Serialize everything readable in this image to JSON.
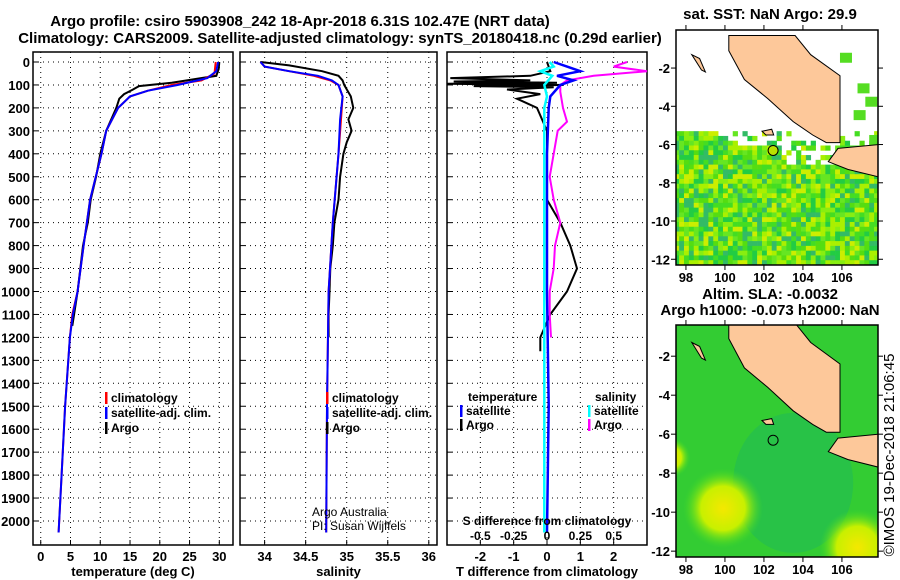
{
  "title": {
    "line1": "Argo profile: csiro 5903908_242 18-Apr-2018 6.31S 102.47E (NRT data)",
    "line2": "Climatology: CARS2009. Satellite-adjusted climatology: synTS_20180418.nc (0.29d earlier)"
  },
  "colors": {
    "climatology": "#ff0000",
    "satellite": "#0000ff",
    "argo": "#000000",
    "sal_sat": "#00ffff",
    "sal_argo": "#ff00ff",
    "land": "#fdc89a"
  },
  "chart_data": [
    {
      "type": "line",
      "id": "temperature",
      "xlabel": "temperature (deg C)",
      "xlim": [
        -1.3,
        32.3
      ],
      "ylim": [
        2100,
        0
      ],
      "xticks": [
        0,
        5,
        10,
        15,
        20,
        25,
        30
      ],
      "yticks": [
        0,
        100,
        200,
        300,
        400,
        500,
        600,
        700,
        800,
        900,
        1000,
        1100,
        1200,
        1300,
        1400,
        1500,
        1600,
        1700,
        1800,
        1900,
        2000
      ],
      "legend": [
        "climatology",
        "satellite-adj. clim.",
        "Argo"
      ],
      "series": [
        {
          "name": "climatology",
          "depth": [
            0,
            50,
            80,
            100,
            125,
            150,
            200,
            300,
            400,
            600,
            800,
            1000,
            1100,
            1200,
            1500,
            1800,
            2050
          ],
          "values": [
            29.4,
            29.2,
            27,
            22,
            18,
            15,
            13,
            11,
            10.2,
            8.3,
            7.2,
            6.2,
            5.3,
            4.9,
            4.1,
            3.5,
            3.0
          ]
        },
        {
          "name": "satellite-adj. clim.",
          "depth": [
            0,
            40,
            70,
            100,
            125,
            150,
            200,
            300,
            400,
            600,
            800,
            1000,
            1100,
            1200,
            1500,
            1800,
            2050
          ],
          "values": [
            29.8,
            29.5,
            28,
            23,
            18,
            15,
            13,
            11,
            10.2,
            8.3,
            7.2,
            6.2,
            5.4,
            4.9,
            4.1,
            3.5,
            3.0
          ]
        },
        {
          "name": "Argo",
          "depth": [
            0,
            30,
            60,
            90,
            105,
            120,
            140,
            160,
            200,
            300,
            400,
            500,
            600,
            700,
            800,
            1000,
            1100,
            1150
          ],
          "values": [
            30,
            29.9,
            29.5,
            22,
            16.5,
            15.5,
            14,
            13.2,
            12.7,
            11,
            10,
            9.3,
            8.4,
            7.9,
            7.1,
            6.2,
            5.6,
            5.3
          ]
        }
      ]
    },
    {
      "type": "line",
      "id": "salinity",
      "xlabel": "salinity",
      "xlim": [
        33.7,
        36.1
      ],
      "ylim": [
        2100,
        0
      ],
      "xticks": [
        34,
        34.5,
        35,
        35.5,
        36
      ],
      "legend": [
        "climatology",
        "satellite-adj. clim.",
        "Argo"
      ],
      "credit": [
        "Argo Australia",
        "PI: Susan Wijffels"
      ],
      "series": [
        {
          "name": "climatology",
          "depth": [
            0,
            20,
            40,
            60,
            80,
            100,
            150,
            250,
            400,
            700,
            1000,
            1500,
            2050
          ],
          "values": [
            33.95,
            34.0,
            34.3,
            34.6,
            34.8,
            34.9,
            34.95,
            34.93,
            34.9,
            34.83,
            34.78,
            34.76,
            34.75
          ]
        },
        {
          "name": "satellite-adj. clim.",
          "depth": [
            0,
            20,
            40,
            60,
            80,
            100,
            150,
            250,
            400,
            700,
            1000,
            1500,
            2050
          ],
          "values": [
            33.95,
            34.0,
            34.3,
            34.65,
            34.82,
            34.9,
            34.95,
            34.92,
            34.9,
            34.83,
            34.78,
            34.76,
            34.75
          ]
        },
        {
          "name": "Argo",
          "depth": [
            0,
            15,
            40,
            60,
            80,
            100,
            150,
            200,
            250,
            300,
            350,
            400,
            500,
            600,
            700,
            800,
            900,
            1000,
            1100,
            1200
          ],
          "values": [
            33.95,
            34.3,
            34.7,
            34.9,
            34.95,
            34.97,
            35.05,
            35.08,
            35.02,
            35.06,
            35.0,
            34.96,
            34.92,
            34.9,
            34.85,
            34.83,
            34.8,
            34.79,
            34.78,
            34.78
          ]
        }
      ]
    },
    {
      "type": "line",
      "id": "difference",
      "xlabel": "T difference from climatology",
      "xlabel2": "S difference from climatology",
      "xlim": [
        -3,
        3
      ],
      "slim": [
        -0.75,
        0.75
      ],
      "xticks": [
        -2,
        -1,
        0,
        1,
        2
      ],
      "sticks": [
        "-0.5",
        "-0.25",
        "0",
        "0.25",
        "0.5"
      ],
      "stick_values": [
        -0.5,
        -0.25,
        0,
        0.25,
        0.5
      ],
      "legend": {
        "temperature": "temperature",
        "salinity": "salinity",
        "satellite": "satellite",
        "argo": "Argo"
      },
      "series": [
        {
          "name": "T satellite",
          "axis": "T",
          "depth": [
            0,
            20,
            40,
            60,
            80,
            100,
            150,
            200,
            400,
            600,
            1000,
            1500,
            2050
          ],
          "values": [
            0.2,
            0.6,
            1.0,
            0.3,
            0.8,
            0.4,
            0.1,
            0.05,
            0,
            0,
            0,
            0.05,
            0
          ]
        },
        {
          "name": "T Argo",
          "axis": "T",
          "depth": [
            0,
            40,
            60,
            70,
            80,
            85,
            90,
            95,
            100,
            105,
            110,
            120,
            140,
            160,
            200,
            300,
            400,
            600,
            700,
            800,
            900,
            1000,
            1100,
            1200,
            1260
          ],
          "values": [
            0,
            0.1,
            -0.5,
            -2.9,
            -0.5,
            -2.8,
            0.3,
            -3,
            0.5,
            -2.2,
            0.2,
            -1.2,
            -0.2,
            -0.9,
            -0.3,
            0,
            0,
            0,
            0.4,
            0.7,
            0.9,
            0.6,
            0.1,
            -0.2,
            -0.2
          ]
        },
        {
          "name": "S satellite",
          "axis": "S",
          "depth": [
            0,
            20,
            40,
            60,
            100,
            150,
            200,
            400,
            800,
            1200,
            2050
          ],
          "values": [
            0.02,
            0.05,
            -0.05,
            0.04,
            -0.02,
            0.0,
            -0.02,
            -0.02,
            -0.02,
            -0.02,
            -0.02
          ]
        },
        {
          "name": "S Argo",
          "axis": "S",
          "depth": [
            0,
            20,
            40,
            60,
            80,
            100,
            130,
            200,
            260,
            300,
            400,
            500,
            600,
            700,
            800,
            900,
            1000,
            1100,
            1200
          ],
          "values": [
            0.6,
            0.5,
            0.75,
            0.35,
            0.15,
            0.1,
            0.1,
            0.12,
            0.15,
            0.08,
            0.05,
            0.02,
            0.05,
            0.1,
            0.06,
            0.05,
            0.02,
            0.02,
            0.03
          ]
        }
      ]
    }
  ],
  "depth_axis": {
    "ticks": [
      "0",
      "100",
      "200",
      "300",
      "400",
      "500",
      "600",
      "700",
      "800",
      "900",
      "1000",
      "1100",
      "1200",
      "1300",
      "1400",
      "1500",
      "1600",
      "1700",
      "1800",
      "1900",
      "2000"
    ]
  },
  "maps": {
    "top": {
      "title": "sat. SST: NaN Argo: 29.9"
    },
    "bottom": {
      "title1": "Altim. SLA: -0.0032",
      "title2": "Argo h1000: -0.073 h2000: NaN"
    },
    "lon_ticks": [
      "98",
      "100",
      "102",
      "104",
      "106"
    ],
    "lat_ticks": [
      "-2",
      "-4",
      "-6",
      "-8",
      "-10",
      "-12"
    ],
    "argo_position": {
      "lon": 102.47,
      "lat": -6.31
    }
  },
  "stamp": "©IMOS 19-Dec-2018 21:06:45"
}
